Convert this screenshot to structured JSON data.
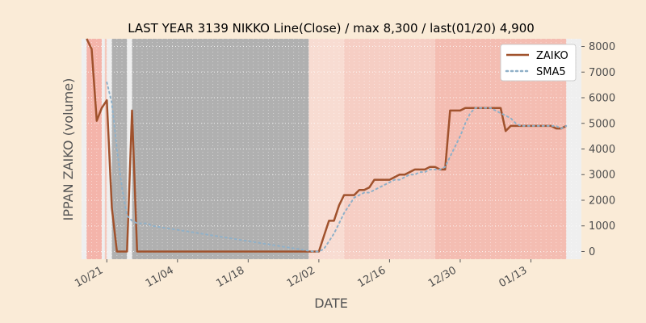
{
  "chart_data": {
    "type": "line",
    "title": "LAST YEAR 3139 NIKKO Line(Close) / max 8,300 / last(01/20) 4,900",
    "xlabel": "DATE",
    "ylabel": "IPPAN ZAIKO (volume)",
    "ylim": [
      -300,
      8300
    ],
    "yticks": [
      0,
      1000,
      2000,
      3000,
      4000,
      5000,
      6000,
      7000,
      8000
    ],
    "ytick_labels": [
      "0",
      "1000",
      "2000",
      "3000",
      "4000",
      "5000",
      "6000",
      "7000",
      "8000"
    ],
    "xlim": [
      "2019-10-16",
      "2020-01-23"
    ],
    "xticks": [
      "2019-10-21",
      "2019-11-04",
      "2019-11-18",
      "2019-12-02",
      "2019-12-16",
      "2019-12-30",
      "2020-01-13"
    ],
    "xtick_labels": [
      "10/21",
      "11/04",
      "11/18",
      "12/02",
      "12/16",
      "12/30",
      "01/13"
    ],
    "grid": true,
    "legend_position": "top-right",
    "series": [
      {
        "name": "ZAIKO",
        "style": "solid",
        "color": "#a0522d",
        "x": [
          "2019-10-17",
          "2019-10-18",
          "2019-10-19",
          "2019-10-20",
          "2019-10-21",
          "2019-10-22",
          "2019-10-23",
          "2019-10-24",
          "2019-10-25",
          "2019-10-26",
          "2019-10-27",
          "2019-10-28",
          "2019-10-29",
          "2019-10-30",
          "2019-10-31",
          "2019-11-29",
          "2019-11-30",
          "2019-12-01",
          "2019-12-02",
          "2019-12-03",
          "2019-12-04",
          "2019-12-05",
          "2019-12-06",
          "2019-12-07",
          "2019-12-08",
          "2019-12-09",
          "2019-12-10",
          "2019-12-11",
          "2019-12-12",
          "2019-12-13",
          "2019-12-14",
          "2019-12-15",
          "2019-12-16",
          "2019-12-17",
          "2019-12-18",
          "2019-12-19",
          "2019-12-20",
          "2019-12-21",
          "2019-12-22",
          "2019-12-23",
          "2019-12-24",
          "2019-12-25",
          "2019-12-26",
          "2019-12-27",
          "2019-12-28",
          "2019-12-29",
          "2019-12-30",
          "2019-12-31",
          "2020-01-01",
          "2020-01-02",
          "2020-01-03",
          "2020-01-04",
          "2020-01-05",
          "2020-01-06",
          "2020-01-07",
          "2020-01-08",
          "2020-01-09",
          "2020-01-10",
          "2020-01-11",
          "2020-01-12",
          "2020-01-13",
          "2020-01-14",
          "2020-01-15",
          "2020-01-16",
          "2020-01-17",
          "2020-01-18",
          "2020-01-19",
          "2020-01-20"
        ],
        "values": [
          8300,
          7900,
          5100,
          5600,
          5900,
          1700,
          0,
          0,
          0,
          5500,
          0,
          0,
          0,
          0,
          0,
          0,
          0,
          0,
          0,
          600,
          1200,
          1200,
          1800,
          2200,
          2200,
          2200,
          2400,
          2400,
          2500,
          2800,
          2800,
          2800,
          2800,
          2900,
          3000,
          3000,
          3100,
          3200,
          3200,
          3200,
          3300,
          3300,
          3200,
          3200,
          5500,
          5500,
          5500,
          5600,
          5600,
          5600,
          5600,
          5600,
          5600,
          5600,
          5600,
          4700,
          4900,
          4900,
          4900,
          4900,
          4900,
          4900,
          4900,
          4900,
          4900,
          4800,
          4800,
          4900
        ]
      },
      {
        "name": "SMA5",
        "style": "dotted",
        "color": "#8fb0c8",
        "x": [
          "2019-10-21",
          "2019-10-22",
          "2019-10-23",
          "2019-10-24",
          "2019-10-25",
          "2019-10-26",
          "2019-10-27",
          "2019-10-28",
          "2019-10-29",
          "2019-10-30",
          "2019-12-01",
          "2019-12-02",
          "2019-12-03",
          "2019-12-04",
          "2019-12-05",
          "2019-12-06",
          "2019-12-07",
          "2019-12-08",
          "2019-12-09",
          "2019-12-10",
          "2019-12-11",
          "2019-12-12",
          "2019-12-13",
          "2019-12-14",
          "2019-12-15",
          "2019-12-16",
          "2019-12-17",
          "2019-12-18",
          "2019-12-19",
          "2019-12-20",
          "2019-12-21",
          "2019-12-22",
          "2019-12-23",
          "2019-12-24",
          "2019-12-25",
          "2019-12-26",
          "2019-12-27",
          "2019-12-28",
          "2019-12-29",
          "2019-12-30",
          "2019-12-31",
          "2020-01-01",
          "2020-01-02",
          "2020-01-03",
          "2020-01-04",
          "2020-01-05",
          "2020-01-06",
          "2020-01-07",
          "2020-01-08",
          "2020-01-09",
          "2020-01-10",
          "2020-01-11",
          "2020-01-12",
          "2020-01-13",
          "2020-01-14",
          "2020-01-15",
          "2020-01-16",
          "2020-01-17",
          "2020-01-18",
          "2020-01-19",
          "2020-01-20"
        ],
        "values": [
          6600,
          5800,
          4000,
          2500,
          1400,
          1200,
          1100,
          1100,
          1100,
          1000,
          0,
          0,
          100,
          400,
          700,
          1100,
          1500,
          1800,
          2100,
          2200,
          2300,
          2300,
          2400,
          2500,
          2600,
          2700,
          2800,
          2800,
          2900,
          3000,
          3000,
          3100,
          3100,
          3200,
          3200,
          3200,
          3300,
          3700,
          4100,
          4500,
          5000,
          5400,
          5600,
          5600,
          5600,
          5600,
          5500,
          5400,
          5300,
          5200,
          5000,
          4900,
          4900,
          4900,
          4900,
          4900,
          4900,
          4900,
          4900,
          4800,
          4900
        ]
      }
    ],
    "shaded_regions": [
      {
        "start": "2019-10-17",
        "end": "2019-10-20",
        "color": "#f4b4aa"
      },
      {
        "start": "2019-10-20.6",
        "end": "2019-10-21",
        "color": "#f4c8bc"
      },
      {
        "start": "2019-10-22",
        "end": "2019-10-25",
        "color": "#b0b0b0"
      },
      {
        "start": "2019-10-26",
        "end": "2019-11-30",
        "color": "#b0b0b0"
      },
      {
        "start": "2019-11-30",
        "end": "2019-12-07",
        "color": "#f8dcd2"
      },
      {
        "start": "2019-12-07",
        "end": "2019-12-25",
        "color": "#f6cec4"
      },
      {
        "start": "2019-12-25",
        "end": "2020-01-05",
        "color": "#f4bdb2"
      },
      {
        "start": "2020-01-05",
        "end": "2020-01-20",
        "color": "#f4bdb2"
      }
    ]
  }
}
